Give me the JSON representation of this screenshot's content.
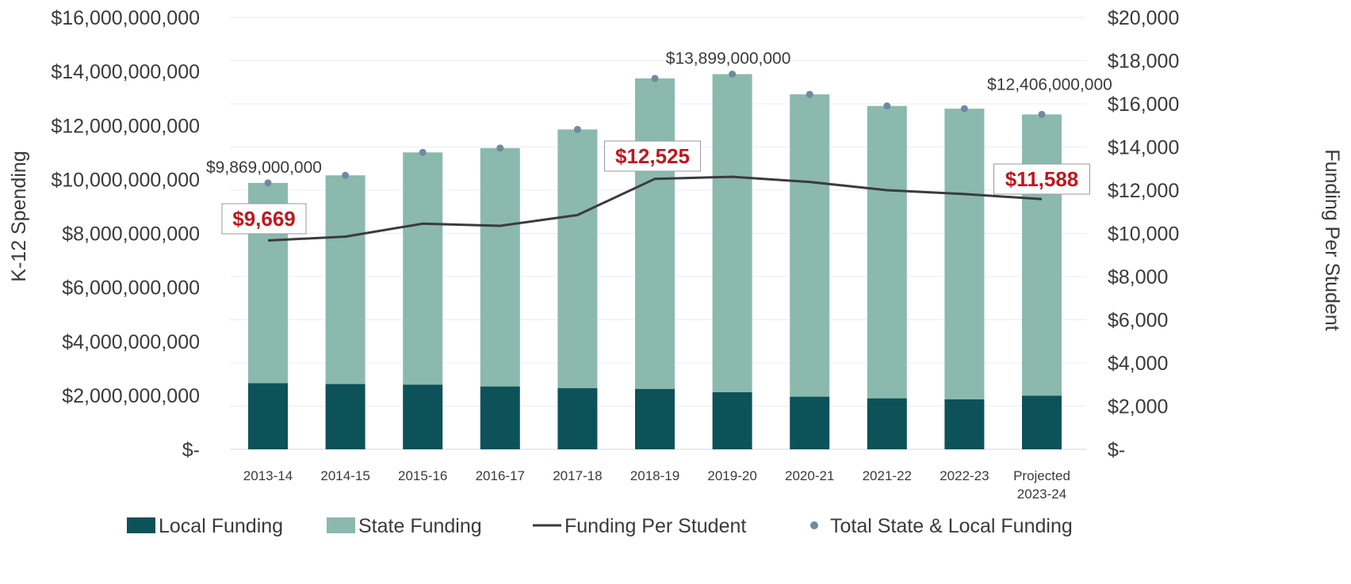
{
  "chart_data": {
    "type": "bar",
    "stacked": true,
    "categories": [
      "2013-14",
      "2014-15",
      "2015-16",
      "2016-17",
      "2017-18",
      "2018-19",
      "2019-20",
      "2020-21",
      "2021-22",
      "2022-23",
      "Projected\n2023-24"
    ],
    "series": [
      {
        "name": "Local Funding",
        "type": "bar",
        "axis": "left",
        "color": "#0d5259",
        "values": [
          2450000000,
          2420000000,
          2400000000,
          2330000000,
          2270000000,
          2240000000,
          2120000000,
          1950000000,
          1890000000,
          1850000000,
          1990000000
        ]
      },
      {
        "name": "State Funding",
        "type": "bar",
        "axis": "left",
        "color": "#8bb9ae",
        "values": [
          7419000000,
          7730000000,
          8600000000,
          8830000000,
          9580000000,
          11500000000,
          11779000000,
          11200000000,
          10830000000,
          10770000000,
          10416000000
        ]
      },
      {
        "name": "Funding Per Student",
        "type": "line",
        "axis": "right",
        "color": "#3b3b3b",
        "values": [
          9669,
          9850,
          10450,
          10350,
          10850,
          12525,
          12620,
          12380,
          12000,
          11820,
          11588
        ]
      },
      {
        "name": "Total State & Local Funding",
        "type": "scatter",
        "axis": "left",
        "color": "#6f8aa0",
        "values": [
          9869000000,
          10150000000,
          11000000000,
          11160000000,
          11850000000,
          13740000000,
          13899000000,
          13150000000,
          12720000000,
          12620000000,
          12406000000
        ]
      }
    ],
    "y_left": {
      "label": "K-12 Spending",
      "range": [
        0,
        16000000000
      ],
      "tick_labels": [
        "$-",
        "$2,000,000,000",
        "$4,000,000,000",
        "$6,000,000,000",
        "$8,000,000,000",
        "$10,000,000,000",
        "$12,000,000,000",
        "$14,000,000,000",
        "$16,000,000,000"
      ]
    },
    "y_right": {
      "label": "Funding Per Student",
      "range": [
        0,
        20000
      ],
      "tick_labels": [
        "$-",
        "$2,000",
        "$4,000",
        "$6,000",
        "$8,000",
        "$10,000",
        "$12,000",
        "$14,000",
        "$16,000",
        "$18,000",
        "$20,000"
      ]
    },
    "annotations": {
      "totals": [
        {
          "index": 0,
          "text": "$9,869,000,000"
        },
        {
          "index": 6,
          "text": "$13,899,000,000"
        },
        {
          "index": 10,
          "text": "$12,406,000,000"
        }
      ],
      "per_student": [
        {
          "index": 0,
          "text": "$9,669"
        },
        {
          "index": 5,
          "text": "$12,525"
        },
        {
          "index": 10,
          "text": "$11,588"
        }
      ]
    },
    "grid": true,
    "legend_position": "bottom"
  }
}
